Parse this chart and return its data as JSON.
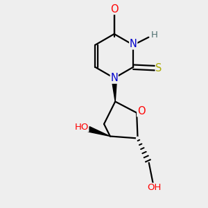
{
  "background_color": "#eeeeee",
  "atom_colors": {
    "C": "#000000",
    "N": "#0000cc",
    "O": "#ff0000",
    "S": "#aaaa00",
    "H": "#507070"
  },
  "bond_color": "#000000",
  "figsize": [
    3.0,
    3.0
  ],
  "dpi": 100,
  "lw": 1.6
}
